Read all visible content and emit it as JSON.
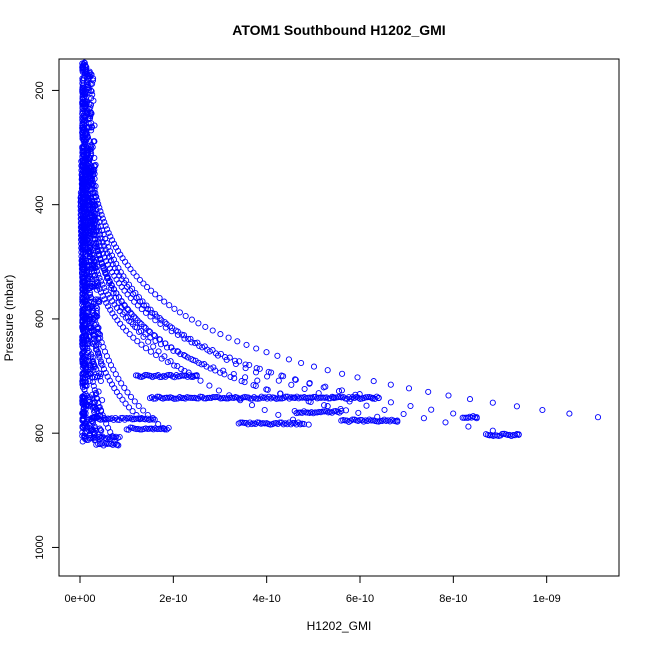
{
  "chart_data": {
    "type": "scatter",
    "title": "ATOM1 Southbound H1202_GMI",
    "xlabel": "H1202_GMI",
    "ylabel": "Pressure (mbar)",
    "xlim": [
      -4.5e-11,
      1.155e-09
    ],
    "ylim": [
      1050,
      145
    ],
    "y_axis_reversed": true,
    "grid": false,
    "legend": "none",
    "marker": "open-circle",
    "color": "#0000ff",
    "x_ticks": [
      {
        "value": 0,
        "label": "0e+00"
      },
      {
        "value": 2e-10,
        "label": "2e-10"
      },
      {
        "value": 4e-10,
        "label": "4e-10"
      },
      {
        "value": 6e-10,
        "label": "6e-10"
      },
      {
        "value": 8e-10,
        "label": "8e-10"
      },
      {
        "value": 1e-09,
        "label": "1e-09"
      }
    ],
    "y_ticks": [
      {
        "value": 200,
        "label": "200"
      },
      {
        "value": 400,
        "label": "400"
      },
      {
        "value": 600,
        "label": "600"
      },
      {
        "value": 800,
        "label": "800"
      },
      {
        "value": 1000,
        "label": "1000"
      }
    ],
    "profiles": [
      {
        "x_surface": 8e-11,
        "p_surface": 820,
        "decay": 120,
        "count": 60
      },
      {
        "x_surface": 1.3e-10,
        "p_surface": 775,
        "decay": 110,
        "count": 60
      },
      {
        "x_surface": 1.8e-10,
        "p_surface": 792,
        "decay": 130,
        "count": 60
      },
      {
        "x_surface": 2.5e-10,
        "p_surface": 700,
        "decay": 100,
        "count": 60
      },
      {
        "x_surface": 3.8e-10,
        "p_surface": 708,
        "decay": 95,
        "count": 60
      },
      {
        "x_surface": 4.9e-10,
        "p_surface": 785,
        "decay": 140,
        "count": 60
      },
      {
        "x_surface": 5.7e-10,
        "p_surface": 760,
        "decay": 120,
        "count": 60
      },
      {
        "x_surface": 6.4e-10,
        "p_surface": 738,
        "decay": 115,
        "count": 65
      },
      {
        "x_surface": 6.8e-10,
        "p_surface": 778,
        "decay": 120,
        "count": 65
      },
      {
        "x_surface": 8.5e-10,
        "p_surface": 772,
        "decay": 125,
        "count": 70
      },
      {
        "x_surface": 9.4e-10,
        "p_surface": 803,
        "decay": 140,
        "count": 70
      },
      {
        "x_surface": 1.11e-09,
        "p_surface": 772,
        "decay": 130,
        "count": 75
      }
    ],
    "horizontal_runs": [
      {
        "p": 738,
        "x_start": 1.5e-10,
        "x_end": 6.4e-10
      },
      {
        "p": 775,
        "x_start": 2e-11,
        "x_end": 1.6e-10
      },
      {
        "p": 792,
        "x_start": 1e-10,
        "x_end": 1.9e-10
      },
      {
        "p": 808,
        "x_start": 2e-11,
        "x_end": 8.5e-11
      },
      {
        "p": 820,
        "x_start": 3.5e-11,
        "x_end": 8.2e-11
      },
      {
        "p": 783,
        "x_start": 3.4e-10,
        "x_end": 4.8e-10
      },
      {
        "p": 763,
        "x_start": 4.6e-10,
        "x_end": 5.6e-10
      },
      {
        "p": 778,
        "x_start": 5.6e-10,
        "x_end": 6.8e-10
      },
      {
        "p": 772,
        "x_start": 8.2e-10,
        "x_end": 8.5e-10
      },
      {
        "p": 803,
        "x_start": 8.7e-10,
        "x_end": 9.4e-10
      },
      {
        "p": 700,
        "x_start": 1.2e-10,
        "x_end": 2.5e-10
      }
    ],
    "core_band": {
      "x_min": 0,
      "x_max": 4.5e-11,
      "p_min": 150,
      "p_max": 815
    }
  }
}
